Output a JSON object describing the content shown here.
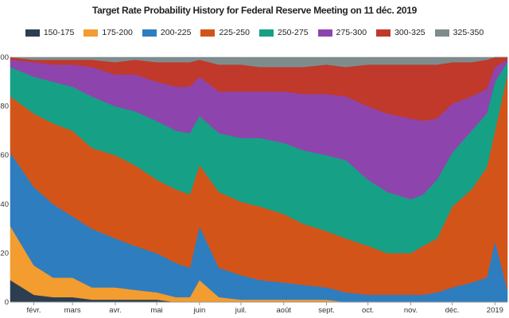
{
  "chart_data": {
    "type": "area",
    "stacked": true,
    "title": "Target Rate Probability History for Federal Reserve Meeting on 11 déc. 2019",
    "xlabel": "",
    "ylabel": "",
    "ylim": [
      0,
      100
    ],
    "grid": false,
    "legend_position": "top",
    "x_ticks": [
      "févr.",
      "mars",
      "avr.",
      "mai",
      "juin",
      "juil.",
      "août",
      "sept.",
      "oct.",
      "nov.",
      "déc.",
      "2019"
    ],
    "y_ticks": [
      "0",
      "20",
      "40",
      "60",
      "80",
      "100"
    ],
    "x": [
      "2018-01-15",
      "2018-02-01",
      "2018-02-15",
      "2018-03-01",
      "2018-03-15",
      "2018-04-01",
      "2018-04-15",
      "2018-05-01",
      "2018-05-15",
      "2018-05-25",
      "2018-06-01",
      "2018-06-15",
      "2018-07-01",
      "2018-07-15",
      "2018-08-01",
      "2018-08-15",
      "2018-09-01",
      "2018-09-15",
      "2018-10-01",
      "2018-10-15",
      "2018-11-01",
      "2018-11-10",
      "2018-11-20",
      "2018-12-01",
      "2018-12-15",
      "2018-12-26",
      "2019-01-01",
      "2019-01-10"
    ],
    "series": [
      {
        "name": "150-175",
        "color": "#2c3e50",
        "values": [
          9,
          3,
          2,
          2,
          1,
          1,
          1,
          1,
          0,
          0,
          0,
          0,
          0,
          0,
          0,
          0,
          0,
          0,
          0,
          0,
          0,
          0,
          0,
          0,
          0,
          0,
          0,
          0
        ]
      },
      {
        "name": "175-200",
        "color": "#f39c2f",
        "values": [
          22,
          12,
          8,
          8,
          5,
          5,
          4,
          3,
          2,
          2,
          9,
          2,
          1,
          1,
          1,
          1,
          1,
          0,
          0,
          0,
          0,
          0,
          0,
          0,
          0,
          0,
          0,
          0
        ]
      },
      {
        "name": "200-225",
        "color": "#2e7dbf",
        "values": [
          30,
          32,
          30,
          25,
          24,
          20,
          18,
          16,
          14,
          12,
          22,
          12,
          10,
          8,
          7,
          6,
          5,
          4,
          3,
          3,
          3,
          3,
          4,
          6,
          8,
          10,
          25,
          5
        ]
      },
      {
        "name": "225-250",
        "color": "#d35419",
        "values": [
          23,
          30,
          33,
          35,
          33,
          34,
          33,
          30,
          30,
          30,
          25,
          31,
          30,
          30,
          28,
          25,
          23,
          22,
          20,
          17,
          17,
          20,
          22,
          33,
          38,
          45,
          45,
          88
        ]
      },
      {
        "name": "250-275",
        "color": "#16a085",
        "values": [
          12,
          15,
          17,
          18,
          21,
          20,
          22,
          24,
          24,
          25,
          20,
          24,
          26,
          28,
          29,
          30,
          31,
          32,
          27,
          25,
          22,
          21,
          24,
          22,
          24,
          22,
          20,
          5
        ]
      },
      {
        "name": "275-300",
        "color": "#8e44ad",
        "values": [
          3,
          6,
          7,
          9,
          12,
          13,
          15,
          16,
          18,
          19,
          16,
          17,
          19,
          19,
          21,
          23,
          25,
          26,
          30,
          32,
          33,
          30,
          25,
          20,
          14,
          10,
          6,
          1
        ]
      },
      {
        "name": "300-325",
        "color": "#c0392b",
        "values": [
          1,
          1,
          2,
          2,
          3,
          5,
          6,
          8,
          10,
          10,
          7,
          11,
          11,
          10,
          10,
          11,
          12,
          12,
          17,
          20,
          22,
          23,
          22,
          17,
          14,
          12,
          4,
          1
        ]
      },
      {
        "name": "325-350",
        "color": "#7f8c8d",
        "values": [
          0,
          1,
          1,
          1,
          1,
          2,
          1,
          2,
          2,
          2,
          1,
          3,
          3,
          4,
          4,
          4,
          3,
          4,
          3,
          3,
          3,
          3,
          3,
          2,
          2,
          1,
          0,
          0
        ]
      }
    ]
  }
}
